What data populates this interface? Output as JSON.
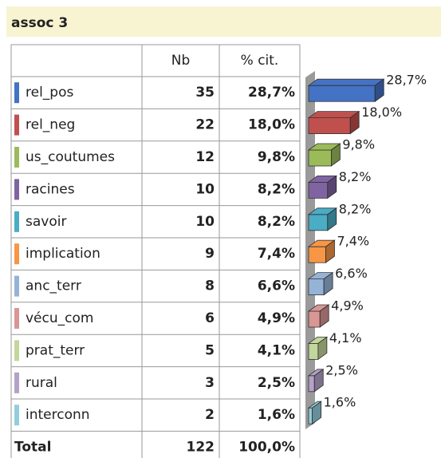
{
  "title": "assoc 3",
  "table": {
    "header": [
      "Nb",
      "% cit."
    ],
    "rows": [
      {
        "label": "rel_pos",
        "color": "#4472c4",
        "nb": 35,
        "pct": {
          "value": 28.7,
          "label": "28,7%"
        }
      },
      {
        "label": "rel_neg",
        "color": "#c0504d",
        "nb": 22,
        "pct": {
          "value": 18.0,
          "label": "18,0%"
        }
      },
      {
        "label": "us_coutumes",
        "color": "#9bbb59",
        "nb": 12,
        "pct": {
          "value": 9.8,
          "label": "9,8%"
        }
      },
      {
        "label": "racines",
        "color": "#8064a2",
        "nb": 10,
        "pct": {
          "value": 8.2,
          "label": "8,2%"
        }
      },
      {
        "label": "savoir",
        "color": "#4bacc6",
        "nb": 10,
        "pct": {
          "value": 8.2,
          "label": "8,2%"
        }
      },
      {
        "label": "implication",
        "color": "#f79646",
        "nb": 9,
        "pct": {
          "value": 7.4,
          "label": "7,4%"
        }
      },
      {
        "label": "anc_terr",
        "color": "#95b3d7",
        "nb": 8,
        "pct": {
          "value": 6.6,
          "label": "6,6%"
        }
      },
      {
        "label": "vécu_com",
        "color": "#d99694",
        "nb": 6,
        "pct": {
          "value": 4.9,
          "label": "4,9%"
        }
      },
      {
        "label": "prat_terr",
        "color": "#c3d69b",
        "nb": 5,
        "pct": {
          "value": 4.1,
          "label": "4,1%"
        }
      },
      {
        "label": "rural",
        "color": "#b3a2c7",
        "nb": 3,
        "pct": {
          "value": 2.5,
          "label": "2,5%"
        }
      },
      {
        "label": "interconn",
        "color": "#93cddd",
        "nb": 2,
        "pct": {
          "value": 1.6,
          "label": "1,6%"
        }
      }
    ],
    "total": {
      "label": "Total",
      "nb": 122,
      "pct": {
        "value": 100,
        "label": "100,0%"
      }
    }
  }
}
